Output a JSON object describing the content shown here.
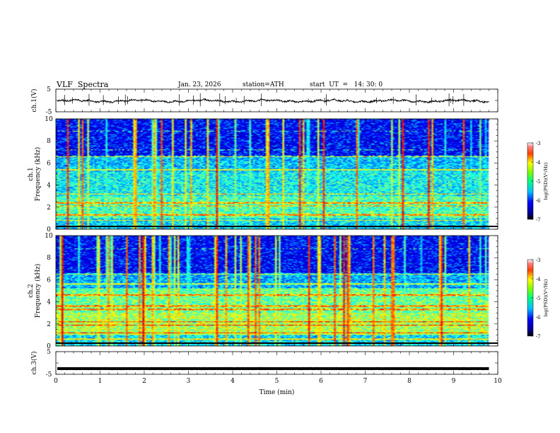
{
  "header": {
    "title": "VLF  Spectra",
    "date": "Jan. 23, 2026",
    "station": "station=ATH",
    "start_ut": "start  UT  =   14: 30: 0"
  },
  "chart_data": [
    {
      "type": "line",
      "name": "ch1-waveform",
      "ylabel": "ch.1(V)",
      "ylim": [
        -5,
        5
      ],
      "yticks": [
        "5",
        "-5"
      ],
      "xlim": [
        0,
        10
      ],
      "baseline": -0.2,
      "description_values": "noisy waveform around 0 V, range approx -1 to 1 V"
    },
    {
      "type": "heatmap",
      "name": "ch1-spectrogram",
      "ylabel": "ch.1\nFrequency  (kHz)",
      "ylim": [
        0,
        10
      ],
      "yticks": [
        "0",
        "2",
        "4",
        "6",
        "8",
        "10"
      ],
      "xlim": [
        0,
        10
      ],
      "data_end_min": 9.8,
      "colorbar": {
        "label": "log(PSD)(V²/Hz)",
        "range": [
          -7,
          -3
        ],
        "ticks": [
          "-3",
          "-4",
          "-5",
          "-6",
          "-7"
        ]
      }
    },
    {
      "type": "heatmap",
      "name": "ch2-spectrogram",
      "ylabel": "ch.2\nFrequency  (kHz)",
      "ylim": [
        0,
        10
      ],
      "yticks": [
        "0",
        "2",
        "4",
        "6",
        "8",
        "10"
      ],
      "xlim": [
        0,
        10
      ],
      "data_end_min": 9.8,
      "colorbar": {
        "label": "log(PSD)(V²/Hz)",
        "range": [
          -7,
          -3
        ],
        "ticks": [
          "-3",
          "-4",
          "-5",
          "-6",
          "-7"
        ]
      }
    },
    {
      "type": "line",
      "name": "ch3-waveform",
      "ylabel": "ch.3(V)",
      "ylim": [
        -5,
        5
      ],
      "yticks": [
        "5",
        "-5"
      ],
      "xlim": [
        0,
        10
      ],
      "baseline": -2.5,
      "xlabel": "Time  (min)",
      "xticks": [
        "0",
        "1",
        "2",
        "3",
        "4",
        "5",
        "6",
        "7",
        "8",
        "9",
        "10"
      ]
    }
  ]
}
